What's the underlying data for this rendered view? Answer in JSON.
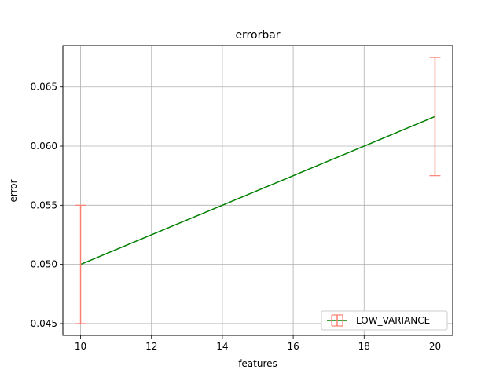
{
  "chart_data": {
    "type": "line",
    "title": "errorbar",
    "xlabel": "features",
    "ylabel": "error",
    "xlim": [
      9.5,
      20.5
    ],
    "ylim": [
      0.044,
      0.0685
    ],
    "x_ticks": [
      10,
      12,
      14,
      16,
      18,
      20
    ],
    "x_tick_labels": [
      "10",
      "12",
      "14",
      "16",
      "18",
      "20"
    ],
    "y_ticks": [
      0.045,
      0.05,
      0.055,
      0.06,
      0.065
    ],
    "y_tick_labels": [
      "0.045",
      "0.050",
      "0.055",
      "0.060",
      "0.065"
    ],
    "grid": true,
    "legend_position": "lower-right",
    "series": [
      {
        "name": "LOW_VARIANCE",
        "x": [
          10,
          20
        ],
        "y": [
          0.05,
          0.0625
        ],
        "yerr": [
          0.005,
          0.005
        ],
        "line_color": "#008000",
        "errorbar_color": "#fa8072"
      }
    ]
  }
}
